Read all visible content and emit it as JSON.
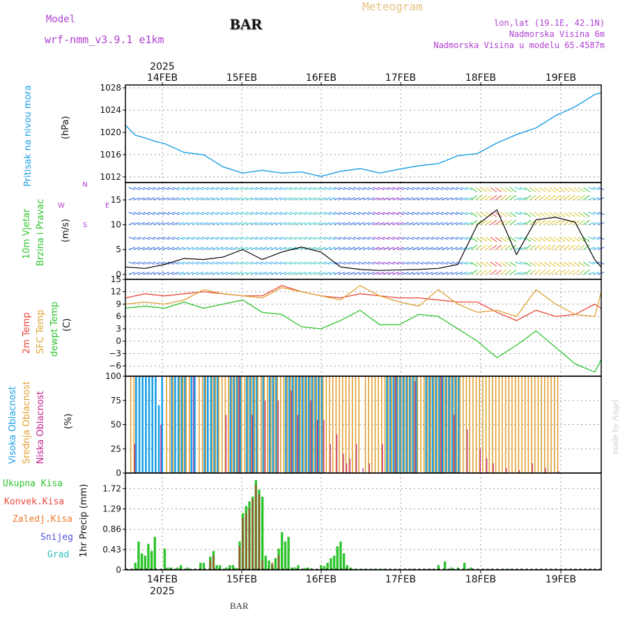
{
  "header": {
    "model_label": "Model",
    "model_name": "wrf-nmm_v3.9.1  e1km",
    "station": "BAR",
    "product": "Meteogram",
    "coords": "lon,lat (19.1E, 42.1N)",
    "elevation": "Nadmorska Visina 6m",
    "model_elevation": "Nadmorska Visina u modelu 65.4587m",
    "footer_station": "BAR",
    "credit": "made by Angel"
  },
  "colors": {
    "pressure": "#1a9ee6",
    "t2m": "#e8473a",
    "sfc": "#e0a030",
    "dewpt": "#2ec42e",
    "high_cloud": "#1aa0e6",
    "mid_cloud": "#e0a030",
    "low_cloud": "#c0208c",
    "total_precip": "#2ec42e",
    "conv_precip": "#a0522d",
    "model_text": "#b040d0",
    "meteogram_text": "#e8c080"
  },
  "time_axis": {
    "top_year": "2025",
    "bottom_year": "2025",
    "day_labels": [
      "14FEB",
      "15FEB",
      "16FEB",
      "17FEB",
      "18FEB",
      "19FEB"
    ],
    "start_hour": 0,
    "end_hour": 146
  },
  "chart_data": [
    {
      "type": "line",
      "panel": "pressure",
      "ylabel": [
        "Pritisak na nivou mora",
        "(hPa)"
      ],
      "ylim": [
        1011,
        1028.5
      ],
      "yticks": [
        "1012",
        "1016",
        "1020",
        "1024",
        "1028"
      ],
      "x_hours": [
        0,
        3,
        6,
        9,
        12,
        18,
        24,
        30,
        36,
        42,
        48,
        54,
        60,
        66,
        72,
        78,
        84,
        90,
        96,
        102,
        108,
        114,
        120,
        126,
        132,
        138,
        144,
        146
      ],
      "values": [
        1021.3,
        1019.5,
        1019.0,
        1018.4,
        1018.0,
        1016.4,
        1016.0,
        1013.8,
        1012.7,
        1013.2,
        1012.7,
        1012.9,
        1012.1,
        1013.0,
        1013.5,
        1012.7,
        1013.4,
        1014.0,
        1014.4,
        1015.8,
        1016.2,
        1018.1,
        1019.6,
        1020.8,
        1023.0,
        1024.6,
        1026.8,
        1027.1
      ]
    },
    {
      "type": "line",
      "panel": "wind",
      "ylabel": [
        "10m Vjetar",
        "Brzina i Pravac",
        "(m/s)"
      ],
      "compass": [
        "N",
        "W",
        "E",
        "S"
      ],
      "ylim": [
        -1,
        18.5
      ],
      "yticks": [
        "0",
        "5",
        "10",
        "15"
      ],
      "x_hours": [
        0,
        6,
        12,
        18,
        24,
        30,
        36,
        42,
        48,
        54,
        60,
        66,
        72,
        78,
        84,
        90,
        96,
        102,
        108,
        114,
        120,
        126,
        132,
        138,
        144,
        146
      ],
      "values": [
        1.5,
        1.2,
        2.0,
        3.2,
        3.0,
        3.5,
        5.0,
        3.0,
        4.5,
        5.5,
        4.5,
        1.5,
        1.0,
        0.8,
        0.9,
        1.0,
        1.2,
        2.0,
        10.0,
        13.0,
        4.0,
        11.0,
        11.5,
        10.5,
        3.0,
        1.5
      ],
      "barb_levels": [
        0,
        2.5,
        5,
        7.5,
        10,
        12.5,
        15,
        17.5
      ]
    },
    {
      "type": "line",
      "panel": "temperature",
      "ylabel": [
        "2m Temp",
        "SFC Temp",
        "dewpt Temp",
        "(C)"
      ],
      "ylim": [
        -8.5,
        15
      ],
      "yticks": [
        "15",
        "12",
        "9",
        "6",
        "3",
        "0",
        "−3",
        "−6"
      ],
      "x_hours": [
        0,
        6,
        12,
        18,
        24,
        30,
        36,
        42,
        48,
        54,
        60,
        66,
        72,
        78,
        84,
        90,
        96,
        102,
        108,
        114,
        120,
        126,
        132,
        138,
        144,
        146
      ],
      "series": [
        {
          "name": "2m Temp",
          "values": [
            10.5,
            11.5,
            11.0,
            11.5,
            12.0,
            11.5,
            11.0,
            11.0,
            13.5,
            12.0,
            11.0,
            10.5,
            11.5,
            11.0,
            10.5,
            10.5,
            10.0,
            9.5,
            9.5,
            7.0,
            5.0,
            7.5,
            6.0,
            6.5,
            9.0,
            8.0
          ]
        },
        {
          "name": "SFC Temp",
          "values": [
            9.0,
            9.5,
            9.0,
            10.0,
            12.5,
            11.5,
            11.0,
            10.5,
            13.0,
            12.0,
            11.0,
            10.0,
            13.5,
            11.0,
            9.5,
            8.5,
            12.5,
            9.0,
            7.0,
            7.5,
            6.0,
            12.5,
            9.0,
            6.5,
            6.0,
            12.0
          ]
        },
        {
          "name": "dewpt Temp",
          "values": [
            8.0,
            8.5,
            8.0,
            9.5,
            8.0,
            9.0,
            10.0,
            7.0,
            6.5,
            3.5,
            3.0,
            5.0,
            7.5,
            4.0,
            4.0,
            6.5,
            6.0,
            3.0,
            0.0,
            -4.0,
            -1.0,
            2.5,
            -1.5,
            -5.5,
            -7.5,
            -4.5
          ]
        }
      ]
    },
    {
      "type": "bar",
      "panel": "cloud",
      "ylabel": [
        "Visoka Oblacnost",
        "Srednja Oblacnost",
        "Niska Oblacnost",
        "(%)"
      ],
      "ylim": [
        0,
        100
      ],
      "yticks": [
        "100",
        "75",
        "50",
        "25",
        "0"
      ],
      "series": [
        {
          "name": "Visoka Oblacnost",
          "x_hours": [
            3,
            4,
            5,
            6,
            7,
            8,
            9,
            10,
            11,
            14,
            15,
            16,
            17,
            18,
            20,
            21,
            24,
            25,
            26,
            27,
            28,
            32,
            33,
            34,
            35,
            37,
            38,
            39,
            40,
            42,
            44,
            45,
            46,
            49,
            50,
            51,
            52,
            53,
            54,
            55,
            56,
            57,
            58,
            59,
            60,
            80,
            81,
            82,
            83,
            84,
            85,
            86,
            87,
            88,
            89,
            92,
            93,
            94,
            95,
            96,
            97,
            98,
            99,
            100,
            101,
            102
          ],
          "values": [
            100,
            100,
            100,
            100,
            100,
            100,
            100,
            70,
            100,
            100,
            100,
            100,
            100,
            100,
            100,
            100,
            100,
            100,
            100,
            100,
            100,
            100,
            100,
            100,
            100,
            100,
            100,
            100,
            100,
            100,
            100,
            100,
            100,
            100,
            100,
            100,
            100,
            100,
            100,
            100,
            100,
            100,
            100,
            100,
            100,
            100,
            100,
            100,
            100,
            100,
            100,
            100,
            100,
            100,
            100,
            100,
            100,
            100,
            100,
            100,
            100,
            100,
            100,
            100,
            100,
            100
          ]
        },
        {
          "name": "Srednja Oblacnost",
          "x_hours": [
            1,
            2,
            12,
            13,
            14,
            16,
            17,
            18,
            19,
            22,
            23,
            24,
            26,
            27,
            28,
            29,
            30,
            31,
            32,
            33,
            34,
            35,
            36,
            37,
            38,
            39,
            40,
            41,
            42,
            43,
            44,
            45,
            46,
            47,
            48,
            49,
            50,
            51,
            52,
            53,
            54,
            55,
            56,
            57,
            58,
            59,
            60,
            61,
            62,
            63,
            64,
            65,
            66,
            67,
            68,
            69,
            70,
            71,
            73,
            74,
            75,
            76,
            77,
            78,
            79,
            80,
            81,
            82,
            83,
            84,
            85,
            86,
            87,
            88,
            89,
            90,
            91,
            92,
            93,
            94,
            95,
            96,
            97,
            98,
            99,
            100,
            101,
            102,
            103,
            104,
            105,
            106,
            107,
            108,
            109,
            110,
            111,
            112,
            113,
            114,
            115,
            116,
            117,
            118,
            119,
            120,
            121,
            122,
            123,
            124,
            125,
            126,
            127,
            128,
            129,
            130,
            131,
            132
          ],
          "values": [
            100,
            100,
            100,
            100,
            100,
            100,
            100,
            100,
            100,
            100,
            100,
            100,
            100,
            100,
            100,
            100,
            100,
            100,
            100,
            100,
            100,
            100,
            100,
            100,
            100,
            100,
            100,
            100,
            100,
            100,
            100,
            100,
            100,
            100,
            100,
            100,
            100,
            100,
            100,
            100,
            100,
            100,
            100,
            100,
            100,
            100,
            100,
            100,
            100,
            100,
            100,
            100,
            100,
            100,
            100,
            100,
            100,
            100,
            100,
            100,
            100,
            100,
            100,
            100,
            100,
            100,
            100,
            100,
            100,
            100,
            100,
            100,
            100,
            100,
            100,
            100,
            100,
            100,
            100,
            100,
            100,
            100,
            100,
            100,
            100,
            100,
            100,
            100,
            100,
            100,
            100,
            100,
            100,
            100,
            100,
            100,
            100,
            100,
            100,
            100,
            100,
            100,
            100,
            100,
            100,
            100,
            100,
            100,
            100,
            100,
            100,
            100,
            100,
            100,
            100,
            100,
            100,
            100
          ]
        },
        {
          "name": "Niska Oblacnost",
          "x_hours": [
            2,
            10,
            20,
            30,
            34,
            38,
            42,
            46,
            50,
            52,
            56,
            58,
            60,
            62,
            64,
            66,
            67,
            68,
            70,
            72,
            74,
            78,
            82,
            88,
            96,
            100,
            104,
            108,
            110,
            112,
            116,
            120,
            124,
            128,
            132,
            136,
            140,
            144
          ],
          "values": [
            30,
            50,
            100,
            60,
            100,
            60,
            75,
            75,
            85,
            60,
            75,
            55,
            55,
            30,
            40,
            20,
            10,
            15,
            30,
            5,
            10,
            30,
            100,
            95,
            100,
            60,
            45,
            25,
            15,
            10,
            5,
            3,
            10,
            5,
            2,
            0,
            0,
            0
          ]
        }
      ]
    },
    {
      "type": "bar",
      "panel": "precip",
      "ylabel": "1hr Precip (mm)",
      "legend": [
        "Ukupna Kisa",
        "Konvek.Kisa",
        "Zaledj.Kisa",
        "Snijeg",
        "Grad"
      ],
      "ylim": [
        0,
        2.05
      ],
      "yticks": [
        "1.72",
        "1.29",
        "0.86",
        "0.43",
        "0"
      ],
      "series": [
        {
          "name": "Ukupna Kisa",
          "x_hours": [
            3,
            4,
            5,
            6,
            7,
            8,
            9,
            12,
            13,
            14,
            15,
            16,
            17,
            18,
            19,
            20,
            23,
            24,
            26,
            27,
            28,
            29,
            30,
            31,
            32,
            33,
            34,
            35,
            36,
            37,
            38,
            39,
            40,
            41,
            42,
            43,
            44,
            45,
            46,
            47,
            48,
            49,
            50,
            51,
            52,
            53,
            54,
            55,
            56,
            57,
            60,
            61,
            62,
            63,
            64,
            65,
            66,
            67,
            68,
            69,
            70,
            71,
            72,
            73,
            74,
            75,
            76,
            77,
            78,
            79,
            80,
            81,
            84,
            86,
            88,
            90,
            92,
            94,
            96,
            98,
            100,
            102,
            104,
            106,
            108,
            110,
            112,
            114,
            116,
            118,
            120
          ],
          "values": [
            0.15,
            0.6,
            0.35,
            0.3,
            0.55,
            0.4,
            0.7,
            0.45,
            0.05,
            0.05,
            0.02,
            0.05,
            0.1,
            0.02,
            0.05,
            0.02,
            0.15,
            0.15,
            0.28,
            0.4,
            0.1,
            0.1,
            0.02,
            0.05,
            0.1,
            0.1,
            0.04,
            0.6,
            1.2,
            1.35,
            1.45,
            1.55,
            1.9,
            1.7,
            1.55,
            0.3,
            0.2,
            0.1,
            0.25,
            0.45,
            0.8,
            0.6,
            0.7,
            0.05,
            0.05,
            0.1,
            0.02,
            0.04,
            0.05,
            0.03,
            0.1,
            0.08,
            0.15,
            0.25,
            0.3,
            0.5,
            0.6,
            0.35,
            0.1,
            0.05,
            0.02,
            0.02,
            0.02,
            0.02,
            0.02,
            0.02,
            0.02,
            0.02,
            0.02,
            0.02,
            0.02,
            0.02,
            0.02,
            0.02,
            0.02,
            0.02,
            0.02,
            0.02,
            0.1,
            0.18,
            0.05,
            0.05,
            0.15,
            0.05,
            0.02,
            0.02,
            0.02,
            0.02,
            0.02,
            0.02,
            0.02
          ]
        },
        {
          "name": "Konvek.Kisa",
          "x_hours": [
            26,
            27,
            35,
            36,
            37,
            38,
            39,
            40,
            41,
            42,
            45,
            47
          ],
          "values": [
            0.2,
            0.3,
            0.5,
            1.1,
            1.2,
            1.3,
            1.5,
            1.8,
            1.6,
            0.2,
            0.15,
            0.3
          ]
        }
      ]
    }
  ]
}
